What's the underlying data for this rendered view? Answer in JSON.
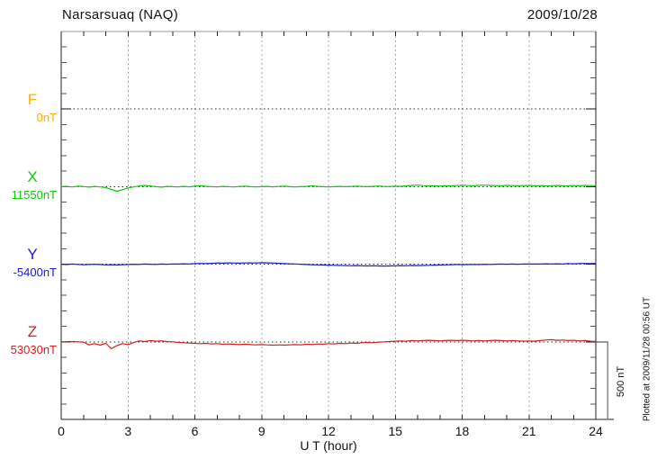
{
  "chart_data": {
    "type": "line",
    "title": "Narsarsuaq (NAQ)",
    "date_label": "2009/10/28",
    "xlabel": "U T (hour)",
    "x_range": [
      0,
      24
    ],
    "x_major_ticks": [
      0,
      3,
      6,
      9,
      12,
      15,
      18,
      21,
      24
    ],
    "x_minor_tick_hours": 1,
    "grid": "vertical dashed gridlines every 3 hours; dotted horizontal baseline per component",
    "legend_position": "left-margin component labels",
    "scale_bar": {
      "label": "500 nT",
      "nanotesla": 500
    },
    "plotted_note": "Plotted at 2009/11/28 00:56 UT",
    "value_unit": "nT deviation from component baseline",
    "step_hours": 0.25,
    "series": [
      {
        "name": "F",
        "baseline_label": "0nT",
        "color": "#FFAA00",
        "values": []
      },
      {
        "name": "X",
        "baseline_label": "11550nT",
        "color": "#10C810",
        "values": [
          0,
          2,
          -2,
          3,
          1,
          -3,
          2,
          -2,
          -6,
          -18,
          -30,
          -20,
          -8,
          -2,
          4,
          8,
          4,
          0,
          -3,
          2,
          0,
          -2,
          2,
          -1,
          3,
          6,
          2,
          0,
          -2,
          2,
          0,
          -2,
          1,
          3,
          0,
          -2,
          0,
          2,
          -1,
          1,
          3,
          0,
          -2,
          0,
          2,
          5,
          2,
          0,
          -2,
          0,
          2,
          0,
          1,
          3,
          1,
          0,
          2,
          4,
          2,
          1,
          3,
          2,
          5,
          8,
          10,
          7,
          5,
          6,
          4,
          6,
          5,
          7,
          9,
          7,
          6,
          8,
          10,
          8,
          7,
          6,
          8,
          7,
          6,
          7,
          8,
          6,
          7,
          5,
          6,
          8,
          6,
          5,
          7,
          6,
          8,
          7,
          6
        ]
      },
      {
        "name": "Y",
        "baseline_label": "-5400nT",
        "color": "#1A1AD0",
        "values": [
          0,
          -2,
          1,
          -1,
          -3,
          -2,
          0,
          -2,
          -4,
          -3,
          -5,
          -3,
          -2,
          0,
          -1,
          1,
          0,
          -1,
          1,
          0,
          2,
          1,
          3,
          2,
          4,
          5,
          4,
          6,
          8,
          7,
          9,
          8,
          7,
          8,
          9,
          8,
          10,
          9,
          8,
          6,
          4,
          3,
          2,
          0,
          -2,
          -3,
          -4,
          -5,
          -6,
          -7,
          -8,
          -9,
          -10,
          -9,
          -10,
          -11,
          -10,
          -11,
          -12,
          -11,
          -10,
          -9,
          -10,
          -8,
          -9,
          -8,
          -7,
          -6,
          -5,
          -4,
          -3,
          -2,
          -3,
          -2,
          -1,
          -2,
          0,
          -1,
          0,
          1,
          0,
          1,
          0,
          2,
          1,
          2,
          1,
          3,
          2,
          3,
          2,
          4,
          3,
          4,
          5,
          4,
          5
        ]
      },
      {
        "name": "Z",
        "baseline_label": "53030nT",
        "color": "#D41E1E",
        "values": [
          0,
          1,
          2,
          0,
          -2,
          -20,
          -12,
          -22,
          -10,
          -45,
          -25,
          -12,
          -18,
          -5,
          6,
          2,
          8,
          4,
          6,
          2,
          0,
          -4,
          -6,
          -8,
          -10,
          -12,
          -10,
          -14,
          -12,
          -16,
          -14,
          -16,
          -18,
          -16,
          -18,
          -20,
          -18,
          -20,
          -22,
          -20,
          -22,
          -20,
          -18,
          -20,
          -16,
          -18,
          -14,
          -16,
          -12,
          -14,
          -10,
          -12,
          -8,
          -10,
          -6,
          -4,
          -6,
          -2,
          0,
          2,
          4,
          6,
          4,
          8,
          6,
          8,
          10,
          8,
          6,
          8,
          10,
          8,
          10,
          8,
          6,
          8,
          6,
          8,
          10,
          8,
          6,
          8,
          6,
          4,
          6,
          4,
          8,
          12,
          14,
          10,
          12,
          8,
          10,
          6,
          8,
          4,
          2
        ]
      }
    ]
  }
}
